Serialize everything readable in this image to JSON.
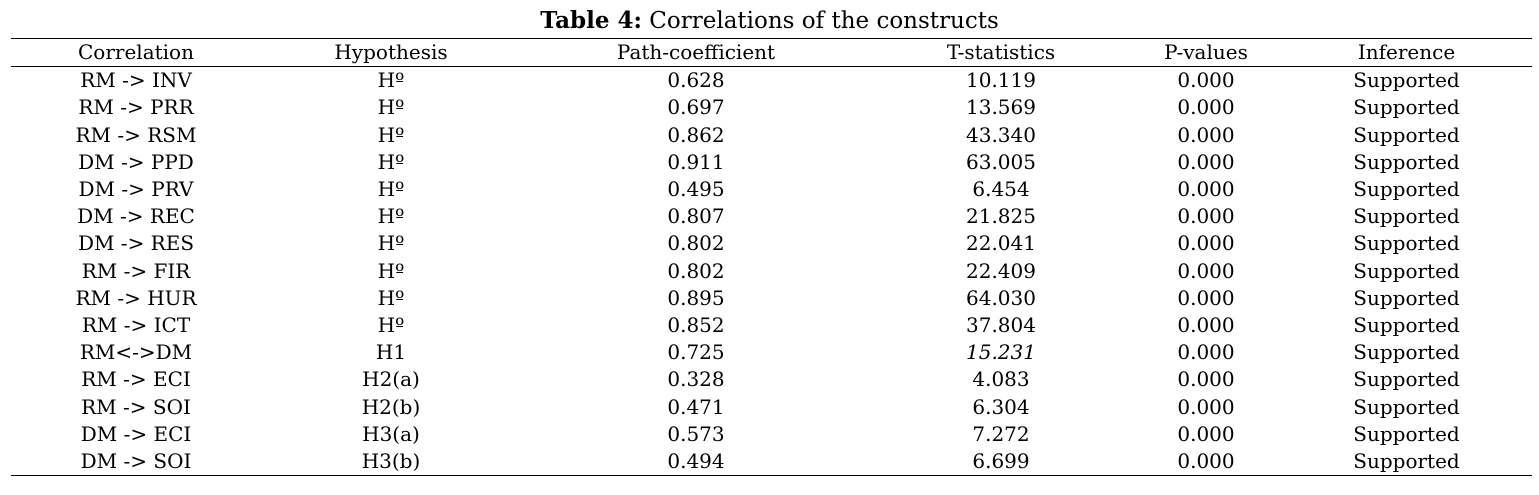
{
  "caption": {
    "label": "Table 4:",
    "text": " Correlations of the constructs"
  },
  "table": {
    "columns": [
      "Correlation",
      "Hypothesis",
      "Path-coefficient",
      "T-statistics",
      "P-values",
      "Inference"
    ],
    "rows": [
      {
        "correlation": "RM -> INV",
        "hypothesis": "Hº",
        "path_coefficient": "0.628",
        "t_statistics": "10.119",
        "p_value": "0.000",
        "inference": "Supported"
      },
      {
        "correlation": "RM -> PRR",
        "hypothesis": "Hº",
        "path_coefficient": "0.697",
        "t_statistics": "13.569",
        "p_value": "0.000",
        "inference": "Supported"
      },
      {
        "correlation": "RM -> RSM",
        "hypothesis": "Hº",
        "path_coefficient": "0.862",
        "t_statistics": "43.340",
        "p_value": "0.000",
        "inference": "Supported"
      },
      {
        "correlation": "DM -> PPD",
        "hypothesis": "Hº",
        "path_coefficient": "0.911",
        "t_statistics": "63.005",
        "p_value": "0.000",
        "inference": "Supported"
      },
      {
        "correlation": "DM -> PRV",
        "hypothesis": "Hº",
        "path_coefficient": "0.495",
        "t_statistics": "6.454",
        "p_value": "0.000",
        "inference": "Supported"
      },
      {
        "correlation": "DM -> REC",
        "hypothesis": "Hº",
        "path_coefficient": "0.807",
        "t_statistics": "21.825",
        "p_value": "0.000",
        "inference": "Supported"
      },
      {
        "correlation": "DM -> RES",
        "hypothesis": "Hº",
        "path_coefficient": "0.802",
        "t_statistics": "22.041",
        "p_value": "0.000",
        "inference": "Supported"
      },
      {
        "correlation": "RM -> FIR",
        "hypothesis": "Hº",
        "path_coefficient": "0.802",
        "t_statistics": "22.409",
        "p_value": "0.000",
        "inference": "Supported"
      },
      {
        "correlation": "RM -> HUR",
        "hypothesis": "Hº",
        "path_coefficient": "0.895",
        "t_statistics": "64.030",
        "p_value": "0.000",
        "inference": "Supported"
      },
      {
        "correlation": "RM -> ICT",
        "hypothesis": "Hº",
        "path_coefficient": "0.852",
        "t_statistics": "37.804",
        "p_value": "0.000",
        "inference": "Supported"
      },
      {
        "correlation": "RM<->DM",
        "hypothesis": "H1",
        "path_coefficient": "0.725",
        "t_statistics": "15.231",
        "p_value": "0.000",
        "inference": "Supported",
        "t_italic": true
      },
      {
        "correlation": "RM -> ECI",
        "hypothesis": "H2(a)",
        "path_coefficient": "0.328",
        "t_statistics": "4.083",
        "p_value": "0.000",
        "inference": "Supported"
      },
      {
        "correlation": "RM -> SOI",
        "hypothesis": "H2(b)",
        "path_coefficient": "0.471",
        "t_statistics": "6.304",
        "p_value": "0.000",
        "inference": "Supported"
      },
      {
        "correlation": "DM -> ECI",
        "hypothesis": "H3(a)",
        "path_coefficient": "0.573",
        "t_statistics": "7.272",
        "p_value": "0.000",
        "inference": "Supported"
      },
      {
        "correlation": "DM -> SOI",
        "hypothesis": "H3(b)",
        "path_coefficient": "0.494",
        "t_statistics": "6.699",
        "p_value": "0.000",
        "inference": "Supported"
      }
    ]
  }
}
